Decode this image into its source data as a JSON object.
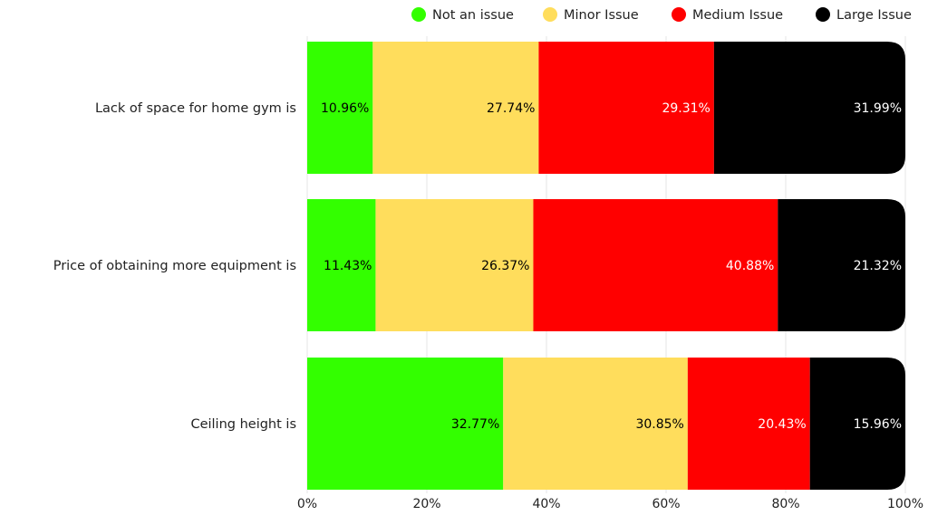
{
  "chart_data": {
    "type": "bar",
    "orientation": "horizontal",
    "stacked": true,
    "title": "",
    "xlabel": "",
    "ylabel": "",
    "xlim": [
      0,
      100
    ],
    "x_ticks": [
      "0%",
      "20%",
      "40%",
      "60%",
      "80%",
      "100%"
    ],
    "grid": true,
    "legend_position": "top-right",
    "categories": [
      "Lack of space for home gym is",
      "Price of obtaining more equipment is",
      "Ceiling height is"
    ],
    "series": [
      {
        "name": "Not an issue",
        "color": "#33ff00",
        "label_color": "#000000",
        "values": [
          10.96,
          11.43,
          32.77
        ],
        "labels": [
          "10.96%",
          "11.43%",
          "32.77%"
        ]
      },
      {
        "name": "Minor Issue",
        "color": "#ffdd5c",
        "label_color": "#000000",
        "values": [
          27.74,
          26.37,
          30.85
        ],
        "labels": [
          "27.74%",
          "26.37%",
          "30.85%"
        ]
      },
      {
        "name": "Medium Issue",
        "color": "#ff0000",
        "label_color": "#ffffff",
        "values": [
          29.31,
          40.88,
          20.43
        ],
        "labels": [
          "29.31%",
          "40.88%",
          "20.43%"
        ]
      },
      {
        "name": "Large Issue",
        "color": "#000000",
        "label_color": "#ffffff",
        "values": [
          31.99,
          21.32,
          15.96
        ],
        "labels": [
          "31.99%",
          "21.32%",
          "15.96%"
        ]
      }
    ]
  }
}
